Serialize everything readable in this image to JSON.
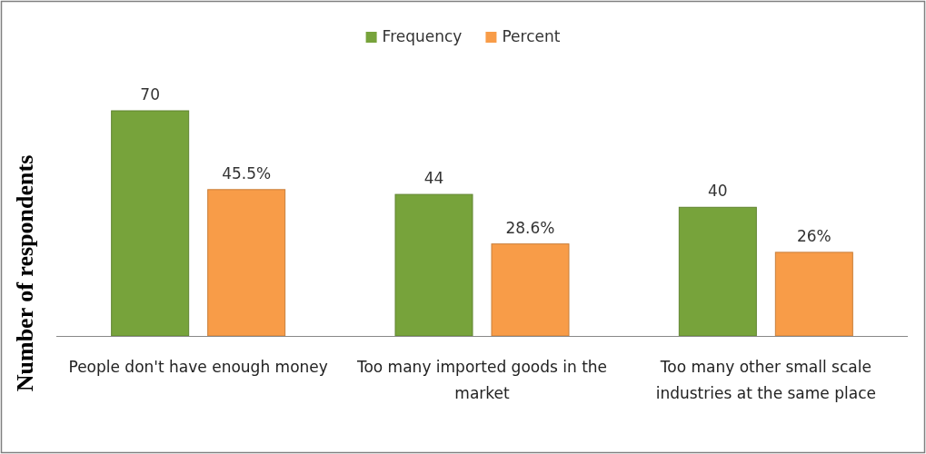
{
  "chart_data": {
    "type": "bar",
    "ylabel": "Number  of respondents",
    "categories": [
      "People don't have enough money",
      "Too many imported goods in the market",
      "Too many other small scale industries at the same place"
    ],
    "series": [
      {
        "name": "Frequency",
        "color": "#77a33b",
        "values": [
          70,
          44,
          40
        ],
        "value_labels": [
          "70",
          "44",
          "40"
        ]
      },
      {
        "name": "Percent",
        "color": "#f89c48",
        "values": [
          45.5,
          28.6,
          26
        ],
        "value_labels": [
          "45.5%",
          "28.6%",
          "26%"
        ]
      }
    ],
    "legend": "top"
  }
}
